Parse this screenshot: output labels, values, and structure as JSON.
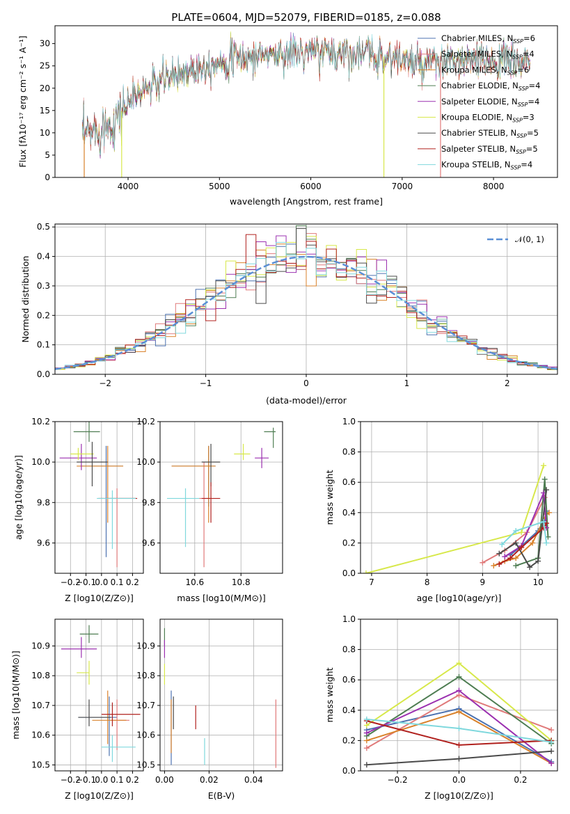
{
  "figure": {
    "title": "PLATE=0604, MJD=52079, FIBERID=0185, z=0.088"
  },
  "models": [
    {
      "name": "Chabrier MILES",
      "nssp": 6,
      "color": "#4c72b0"
    },
    {
      "name": "Salpeter MILES",
      "nssp": 4,
      "color": "#e07a7a"
    },
    {
      "name": "Kroupa MILES",
      "nssp": 6,
      "color": "#d9822b"
    },
    {
      "name": "Chabrier ELODIE",
      "nssp": 4,
      "color": "#4e7d52"
    },
    {
      "name": "Salpeter ELODIE",
      "nssp": 4,
      "color": "#9b30b0"
    },
    {
      "name": "Kroupa ELODIE",
      "nssp": 3,
      "color": "#d7e84a"
    },
    {
      "name": "Chabrier STELIB",
      "nssp": 5,
      "color": "#4a4a4a"
    },
    {
      "name": "Salpeter STELIB",
      "nssp": 5,
      "color": "#b0201d"
    },
    {
      "name": "Kroupa STELIB",
      "nssp": 4,
      "color": "#7fd8dd"
    }
  ],
  "chart_data": [
    {
      "id": "spectrum",
      "type": "line",
      "title": "PLATE=0604, MJD=52079, FIBERID=0185, z=0.088",
      "xlabel": "wavelength [Angstrom, rest frame]",
      "ylabel": "Flux [fλ10⁻¹⁷ erg cm⁻² s⁻¹ A⁻¹]",
      "xlim": [
        3200,
        8700
      ],
      "ylim": [
        0,
        34
      ],
      "xticks": [
        4000,
        5000,
        6000,
        7000,
        8000
      ],
      "yticks": [
        0,
        5,
        10,
        15,
        20,
        25,
        30
      ],
      "legend_position": "top-right",
      "legend": [
        "Chabrier MILES, N_SSP=6",
        "Salpeter MILES, N_SSP=4",
        "Kroupa MILES, N_SSP=6",
        "Chabrier ELODIE, N_SSP=4",
        "Salpeter ELODIE, N_SSP=4",
        "Kroupa ELODIE, N_SSP=3",
        "Chabrier STELIB, N_SSP=5",
        "Salpeter STELIB, N_SSP=5",
        "Kroupa STELIB, N_SSP=4"
      ],
      "continuum": {
        "x": [
          3500,
          3700,
          3800,
          3900,
          4000,
          4200,
          4400,
          4600,
          4800,
          5000,
          5500,
          6000,
          6500,
          7000,
          7200,
          7500,
          8000,
          8400
        ],
        "y": [
          9,
          11,
          12,
          14,
          17,
          20,
          22,
          23.5,
          25,
          26,
          27.5,
          28,
          28,
          26.5,
          25,
          26,
          26,
          26
        ]
      },
      "spikes": [
        {
          "x": 3520,
          "ymin": 0,
          "color": "#d9822b"
        },
        {
          "x": 3930,
          "ymin": 0,
          "color": "#d7e84a"
        },
        {
          "x": 6800,
          "ymin": 0,
          "color": "#d7e84a"
        },
        {
          "x": 7420,
          "ymin": 0,
          "color": "#e07a7a"
        }
      ]
    },
    {
      "id": "residual-histogram",
      "type": "bar",
      "xlabel": "(data-model)/error",
      "ylabel": "Normed distribution",
      "xlim": [
        -2.5,
        2.5
      ],
      "ylim": [
        0,
        0.51
      ],
      "xticks": [
        -2,
        -1,
        0,
        1,
        2
      ],
      "yticks": [
        0.0,
        0.1,
        0.2,
        0.3,
        0.4,
        0.5
      ],
      "grid": true,
      "bin_width": 0.1,
      "reference": {
        "name": "N(0,1)",
        "style": "dashed"
      },
      "legend_position": "top-right",
      "reference_label": "𝒩(0, 1)"
    },
    {
      "id": "age-vs-Z",
      "type": "scatter",
      "xlabel": "Z [log10(Z/Z⊙)]",
      "ylabel": "age  [log10(age/yr)]",
      "xlim": [
        -0.3,
        0.27
      ],
      "ylim": [
        9.45,
        10.2
      ],
      "xticks": [
        -0.2,
        -0.1,
        0.0,
        0.1,
        0.2
      ],
      "yticks": [
        9.6,
        9.8,
        10.0,
        10.2
      ],
      "grid": true,
      "points": [
        {
          "model": 0,
          "x": 0.03,
          "y": 9.98,
          "xerr": [
            0.17,
            0.11
          ],
          "yerr": [
            0.45,
            0.1
          ]
        },
        {
          "model": 1,
          "x": 0.1,
          "y": 9.82,
          "xerr": [
            0.08,
            0.12
          ],
          "yerr": [
            0.34,
            0.05
          ]
        },
        {
          "model": 2,
          "x": 0.04,
          "y": 9.98,
          "xerr": [
            0.2,
            0.1
          ],
          "yerr": [
            0.28,
            0.1
          ]
        },
        {
          "model": 3,
          "x": -0.08,
          "y": 10.15,
          "xerr": [
            0.1,
            0.07
          ],
          "yerr": [
            0.05,
            0.05
          ]
        },
        {
          "model": 4,
          "x": -0.13,
          "y": 10.02,
          "xerr": [
            0.14,
            0.1
          ],
          "yerr": [
            0.06,
            0.07
          ]
        },
        {
          "model": 5,
          "x": -0.15,
          "y": 10.04,
          "xerr": [
            0.05,
            0.1
          ],
          "yerr": [
            0.03,
            0.03
          ]
        },
        {
          "model": 6,
          "x": -0.06,
          "y": 10.0,
          "xerr": [
            0.1,
            0.1
          ],
          "yerr": [
            0.12,
            0.1
          ]
        },
        {
          "model": 7,
          "x": 0.03,
          "y": 9.82,
          "xerr": [
            0.05,
            0.2
          ],
          "yerr": [
            0.0,
            0.0
          ]
        },
        {
          "model": 8,
          "x": 0.07,
          "y": 9.82,
          "xerr": [
            0.1,
            0.15
          ],
          "yerr": [
            0.25,
            0.04
          ]
        }
      ]
    },
    {
      "id": "age-vs-mass",
      "type": "scatter",
      "xlabel": "mass [log10(M/M⊙)]",
      "ylabel": "",
      "xlim": [
        10.45,
        10.98
      ],
      "ylim": [
        9.45,
        10.2
      ],
      "xticks": [
        10.6,
        10.8
      ],
      "yticks": [
        9.6,
        9.8,
        10.0,
        10.2
      ],
      "grid": true,
      "points": [
        {
          "model": 0,
          "x": 10.66,
          "y": 9.98,
          "xerr": [
            0.16,
            0.03
          ],
          "yerr": [
            0.2,
            0.1
          ]
        },
        {
          "model": 1,
          "x": 10.64,
          "y": 9.82,
          "xerr": [
            0.02,
            0.02
          ],
          "yerr": [
            0.34,
            0.18
          ]
        },
        {
          "model": 2,
          "x": 10.66,
          "y": 9.98,
          "xerr": [
            0.16,
            0.03
          ],
          "yerr": [
            0.28,
            0.1
          ]
        },
        {
          "model": 3,
          "x": 10.94,
          "y": 10.15,
          "xerr": [
            0.04,
            0.01
          ],
          "yerr": [
            0.08,
            0.02
          ]
        },
        {
          "model": 4,
          "x": 10.89,
          "y": 10.02,
          "xerr": [
            0.03,
            0.03
          ],
          "yerr": [
            0.05,
            0.05
          ]
        },
        {
          "model": 5,
          "x": 10.81,
          "y": 10.04,
          "xerr": [
            0.04,
            0.03
          ],
          "yerr": [
            0.03,
            0.05
          ]
        },
        {
          "model": 6,
          "x": 10.67,
          "y": 10.0,
          "xerr": [
            0.04,
            0.04
          ],
          "yerr": [
            0.12,
            0.09
          ]
        },
        {
          "model": 7,
          "x": 10.67,
          "y": 9.82,
          "xerr": [
            0.04,
            0.04
          ],
          "yerr": [
            0.12,
            0.08
          ]
        },
        {
          "model": 8,
          "x": 10.56,
          "y": 9.82,
          "xerr": [
            0.08,
            0.06
          ],
          "yerr": [
            0.24,
            0.05
          ]
        }
      ]
    },
    {
      "id": "mass-weight-vs-age",
      "type": "line",
      "xlabel": "age  [log10(age/yr)]",
      "ylabel": "mass weight",
      "xlim": [
        6.8,
        10.35
      ],
      "ylim": [
        0,
        1.0
      ],
      "xticks": [
        7,
        8,
        9,
        10
      ],
      "yticks": [
        0.0,
        0.2,
        0.4,
        0.6,
        0.8,
        1.0
      ],
      "grid": true,
      "series": [
        {
          "model": 0,
          "x": [
            9.5,
            9.7,
            10.0,
            10.12,
            10.15
          ],
          "y": [
            0.12,
            0.18,
            0.28,
            0.35,
            0.41
          ]
        },
        {
          "model": 1,
          "x": [
            9.0,
            9.4,
            9.8,
            10.12
          ],
          "y": [
            0.07,
            0.15,
            0.27,
            0.5
          ]
        },
        {
          "model": 2,
          "x": [
            9.2,
            9.4,
            9.6,
            9.9,
            10.15,
            10.2
          ],
          "y": [
            0.05,
            0.08,
            0.1,
            0.2,
            0.39,
            0.4
          ]
        },
        {
          "model": 3,
          "x": [
            9.6,
            10.0,
            10.12,
            10.18
          ],
          "y": [
            0.05,
            0.1,
            0.62,
            0.24
          ]
        },
        {
          "model": 4,
          "x": [
            9.4,
            9.7,
            10.1,
            10.15
          ],
          "y": [
            0.11,
            0.18,
            0.53,
            0.3
          ]
        },
        {
          "model": 5,
          "x": [
            6.9,
            9.7,
            10.1
          ],
          "y": [
            0.0,
            0.27,
            0.71
          ]
        },
        {
          "model": 6,
          "x": [
            9.3,
            9.6,
            9.85,
            10.0,
            10.15
          ],
          "y": [
            0.13,
            0.2,
            0.04,
            0.08,
            0.55
          ]
        },
        {
          "model": 7,
          "x": [
            9.3,
            9.5,
            9.7,
            10.1,
            10.15
          ],
          "y": [
            0.06,
            0.1,
            0.17,
            0.3,
            0.33
          ]
        },
        {
          "model": 8,
          "x": [
            9.35,
            9.6,
            10.1,
            10.15
          ],
          "y": [
            0.19,
            0.28,
            0.34,
            0.2
          ]
        }
      ]
    },
    {
      "id": "mass-vs-Z",
      "type": "scatter",
      "xlabel": "Z [log10(Z/Z⊙)]",
      "ylabel": "mass [log10(M/M⊙)]",
      "xlim": [
        -0.3,
        0.27
      ],
      "ylim": [
        10.48,
        10.99
      ],
      "xticks": [
        -0.2,
        -0.1,
        0.0,
        0.1,
        0.2
      ],
      "yticks": [
        10.5,
        10.6,
        10.7,
        10.8,
        10.9
      ],
      "grid": true,
      "points": [
        {
          "model": 0,
          "x": 0.05,
          "y": 10.66,
          "xerr": [
            0.2,
            0.05
          ],
          "yerr": [
            0.13,
            0.07
          ]
        },
        {
          "model": 1,
          "x": 0.1,
          "y": 10.65,
          "xerr": [
            0.04,
            0.08
          ],
          "yerr": [
            0.1,
            0.07
          ]
        },
        {
          "model": 2,
          "x": 0.04,
          "y": 10.65,
          "xerr": [
            0.1,
            0.12
          ],
          "yerr": [
            0.08,
            0.1
          ]
        },
        {
          "model": 3,
          "x": -0.08,
          "y": 10.94,
          "xerr": [
            0.06,
            0.06
          ],
          "yerr": [
            0.03,
            0.03
          ]
        },
        {
          "model": 4,
          "x": -0.13,
          "y": 10.89,
          "xerr": [
            0.13,
            0.1
          ],
          "yerr": [
            0.03,
            0.04
          ]
        },
        {
          "model": 5,
          "x": -0.08,
          "y": 10.81,
          "xerr": [
            0.08,
            0.0
          ],
          "yerr": [
            0.04,
            0.04
          ]
        },
        {
          "model": 6,
          "x": -0.08,
          "y": 10.66,
          "xerr": [
            0.07,
            0.14
          ],
          "yerr": [
            0.03,
            0.06
          ]
        },
        {
          "model": 7,
          "x": 0.07,
          "y": 10.67,
          "xerr": [
            0.07,
            0.18
          ],
          "yerr": [
            0.04,
            0.04
          ]
        },
        {
          "model": 8,
          "x": 0.07,
          "y": 10.56,
          "xerr": [
            0.07,
            0.15
          ],
          "yerr": [
            0.05,
            0.04
          ]
        }
      ]
    },
    {
      "id": "mass-vs-EBV",
      "type": "scatter",
      "xlabel": "E(B-V)",
      "ylabel": "",
      "xlim": [
        -0.002,
        0.053
      ],
      "ylim": [
        10.48,
        10.99
      ],
      "xticks": [
        0.0,
        0.02,
        0.04
      ],
      "yticks": [
        10.5,
        10.6,
        10.7,
        10.8,
        10.9
      ],
      "grid": true,
      "points": [
        {
          "model": 0,
          "x": 0.003,
          "y": 10.66,
          "xerr": [
            0,
            0
          ],
          "yerr": [
            0.16,
            0.09
          ]
        },
        {
          "model": 1,
          "x": 0.05,
          "y": 10.6,
          "xerr": [
            0,
            0
          ],
          "yerr": [
            0.11,
            0.12
          ]
        },
        {
          "model": 2,
          "x": 0.003,
          "y": 10.62,
          "xerr": [
            0,
            0
          ],
          "yerr": [
            0.08,
            0.1
          ]
        },
        {
          "model": 3,
          "x": 0.0,
          "y": 10.93,
          "xerr": [
            0,
            0
          ],
          "yerr": [
            0.03,
            0.03
          ]
        },
        {
          "model": 4,
          "x": 0.0,
          "y": 10.89,
          "xerr": [
            0,
            0
          ],
          "yerr": [
            0.03,
            0.03
          ]
        },
        {
          "model": 5,
          "x": 0.0,
          "y": 10.81,
          "xerr": [
            0,
            0
          ],
          "yerr": [
            0.04,
            0.03
          ]
        },
        {
          "model": 6,
          "x": 0.004,
          "y": 10.66,
          "xerr": [
            0,
            0
          ],
          "yerr": [
            0.04,
            0.07
          ]
        },
        {
          "model": 7,
          "x": 0.014,
          "y": 10.66,
          "xerr": [
            0,
            0
          ],
          "yerr": [
            0.04,
            0.04
          ]
        },
        {
          "model": 8,
          "x": 0.018,
          "y": 10.55,
          "xerr": [
            0,
            0
          ],
          "yerr": [
            0.05,
            0.04
          ]
        }
      ]
    },
    {
      "id": "mass-weight-vs-Z",
      "type": "line",
      "xlabel": "Z [log10(Z/Z⊙)]",
      "ylabel": "mass weight",
      "xlim": [
        -0.32,
        0.32
      ],
      "ylim": [
        0,
        1.0
      ],
      "xticks": [
        -0.2,
        0.0,
        0.2
      ],
      "yticks": [
        0.0,
        0.2,
        0.4,
        0.6,
        0.8,
        1.0
      ],
      "grid": true,
      "series": [
        {
          "model": 0,
          "x": [
            -0.3,
            0.0,
            0.3
          ],
          "y": [
            0.27,
            0.41,
            0.06
          ]
        },
        {
          "model": 1,
          "x": [
            -0.3,
            0.0,
            0.3
          ],
          "y": [
            0.15,
            0.5,
            0.27
          ]
        },
        {
          "model": 2,
          "x": [
            -0.3,
            0.0,
            0.3
          ],
          "y": [
            0.2,
            0.39,
            0.05
          ]
        },
        {
          "model": 3,
          "x": [
            -0.3,
            0.0,
            0.3
          ],
          "y": [
            0.23,
            0.62,
            0.18
          ]
        },
        {
          "model": 4,
          "x": [
            -0.3,
            0.0,
            0.3
          ],
          "y": [
            0.25,
            0.53,
            0.05
          ]
        },
        {
          "model": 5,
          "x": [
            -0.3,
            0.0,
            0.3
          ],
          "y": [
            0.3,
            0.71,
            0.2
          ]
        },
        {
          "model": 6,
          "x": [
            -0.3,
            0.0,
            0.3
          ],
          "y": [
            0.04,
            0.08,
            0.13
          ]
        },
        {
          "model": 7,
          "x": [
            -0.3,
            0.0,
            0.3
          ],
          "y": [
            0.33,
            0.17,
            0.2
          ]
        },
        {
          "model": 8,
          "x": [
            -0.3,
            0.0,
            0.3
          ],
          "y": [
            0.34,
            0.28,
            0.19
          ]
        }
      ]
    }
  ]
}
